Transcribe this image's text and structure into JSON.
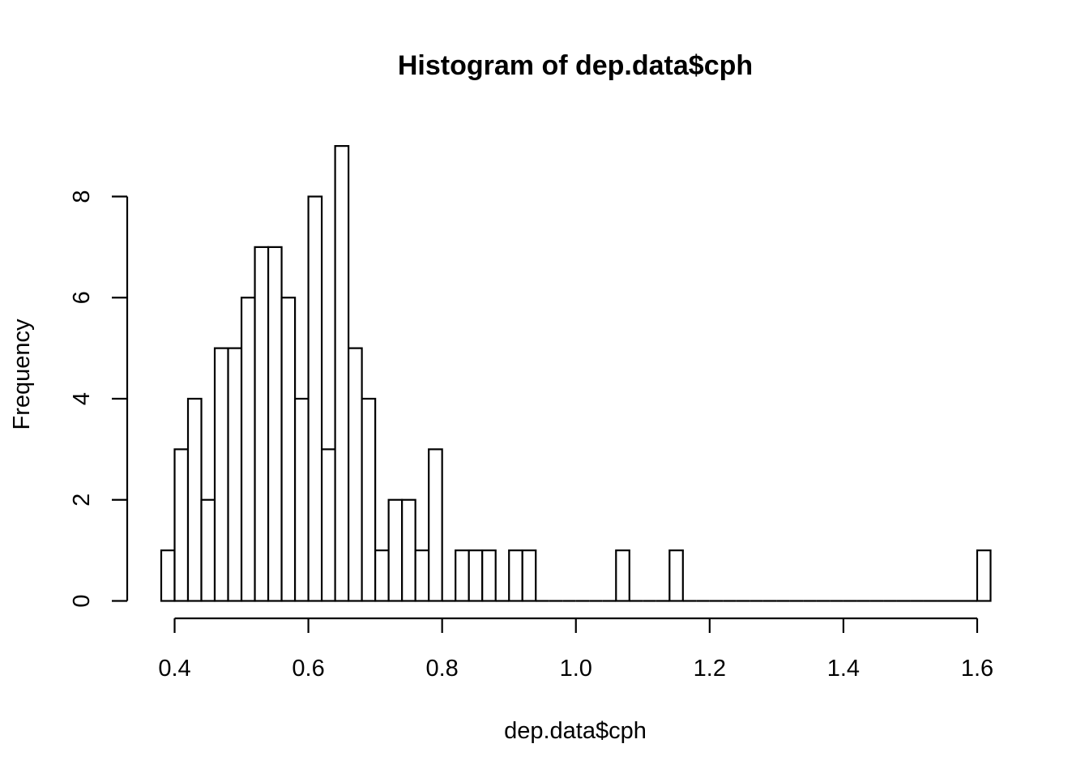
{
  "chart_data": {
    "type": "bar",
    "title": "Histogram of dep.data$cph",
    "xlabel": "dep.data$cph",
    "ylabel": "Frequency",
    "bin_start": 0.38,
    "bin_width": 0.02,
    "values": [
      1,
      3,
      4,
      2,
      5,
      5,
      6,
      7,
      7,
      6,
      4,
      8,
      3,
      9,
      5,
      4,
      1,
      2,
      2,
      1,
      3,
      0,
      1,
      1,
      1,
      0,
      1,
      1,
      0,
      0,
      0,
      0,
      0,
      0,
      1,
      0,
      0,
      0,
      1,
      0,
      0,
      0,
      0,
      0,
      0,
      0,
      0,
      0,
      0,
      0,
      0,
      0,
      0,
      0,
      0,
      0,
      0,
      0,
      0,
      0,
      0,
      1
    ],
    "xlim": [
      0.38,
      1.62
    ],
    "ylim": [
      0,
      9
    ],
    "x_ticks": [
      0.4,
      0.6,
      0.8,
      1.0,
      1.2,
      1.4,
      1.6
    ],
    "x_tick_labels": [
      "0.4",
      "0.6",
      "0.8",
      "1.0",
      "1.2",
      "1.4",
      "1.6"
    ],
    "y_ticks": [
      0,
      2,
      4,
      6,
      8
    ],
    "y_tick_labels": [
      "0",
      "2",
      "4",
      "6",
      "8"
    ],
    "grid": false,
    "bar_fill": "#ffffff",
    "bar_stroke": "#000000"
  }
}
